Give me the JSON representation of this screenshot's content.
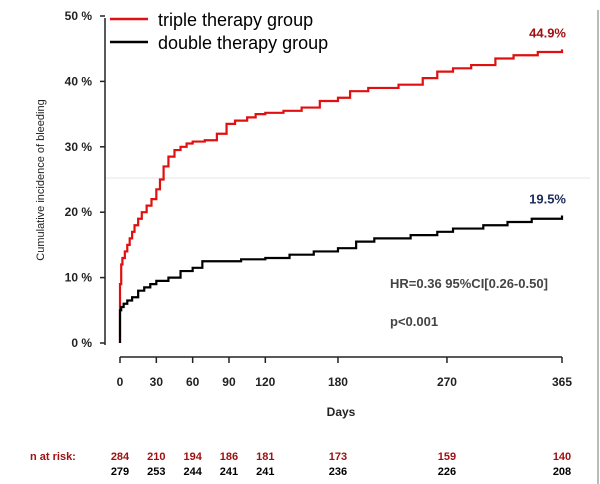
{
  "chart_data": {
    "type": "line",
    "ylabel": "Cumulative incidence of bleeding",
    "xlabel": "Days",
    "xlim": [
      0,
      365
    ],
    "ylim": [
      0,
      50
    ],
    "x_ticks": [
      0,
      30,
      60,
      90,
      120,
      180,
      270,
      365
    ],
    "y_ticks": [
      0,
      10,
      20,
      30,
      40,
      50
    ],
    "y_tick_labels": [
      "0 %",
      "10 %",
      "20 %",
      "30 %",
      "40 %",
      "50 %"
    ],
    "grid": false,
    "legend_position": "top-left",
    "series": [
      {
        "name": "triple therapy group",
        "color": "#e01010",
        "end_label": "44.9%",
        "points": [
          [
            0,
            0
          ],
          [
            0,
            9
          ],
          [
            1,
            12
          ],
          [
            2,
            13
          ],
          [
            4,
            14
          ],
          [
            6,
            15
          ],
          [
            8,
            16
          ],
          [
            10,
            17
          ],
          [
            12,
            18
          ],
          [
            15,
            19
          ],
          [
            18,
            20
          ],
          [
            22,
            21
          ],
          [
            26,
            22
          ],
          [
            30,
            23.5
          ],
          [
            33,
            25
          ],
          [
            36,
            27
          ],
          [
            40,
            28.5
          ],
          [
            45,
            29.5
          ],
          [
            50,
            30
          ],
          [
            55,
            30.5
          ],
          [
            60,
            30.8
          ],
          [
            70,
            31
          ],
          [
            80,
            32
          ],
          [
            88,
            33.5
          ],
          [
            95,
            34
          ],
          [
            105,
            34.5
          ],
          [
            112,
            35
          ],
          [
            120,
            35.2
          ],
          [
            135,
            35.5
          ],
          [
            150,
            36
          ],
          [
            165,
            37
          ],
          [
            180,
            37.5
          ],
          [
            190,
            38.5
          ],
          [
            205,
            39
          ],
          [
            230,
            39.5
          ],
          [
            250,
            40.5
          ],
          [
            262,
            41.5
          ],
          [
            275,
            42
          ],
          [
            290,
            42.5
          ],
          [
            310,
            43.5
          ],
          [
            325,
            44
          ],
          [
            345,
            44.5
          ],
          [
            365,
            44.9
          ]
        ]
      },
      {
        "name": "double therapy group",
        "color": "#000000",
        "end_label": "19.5%",
        "points": [
          [
            0,
            0
          ],
          [
            0,
            5
          ],
          [
            1,
            5.5
          ],
          [
            3,
            6
          ],
          [
            6,
            6.5
          ],
          [
            10,
            7
          ],
          [
            15,
            8
          ],
          [
            20,
            8.5
          ],
          [
            25,
            9
          ],
          [
            30,
            9.5
          ],
          [
            40,
            10
          ],
          [
            50,
            11
          ],
          [
            60,
            11.5
          ],
          [
            68,
            12.5
          ],
          [
            80,
            12.5
          ],
          [
            100,
            12.8
          ],
          [
            120,
            13
          ],
          [
            140,
            13.5
          ],
          [
            160,
            14
          ],
          [
            180,
            14.5
          ],
          [
            195,
            15.5
          ],
          [
            210,
            16
          ],
          [
            240,
            16.5
          ],
          [
            262,
            17
          ],
          [
            275,
            17.5
          ],
          [
            300,
            18
          ],
          [
            320,
            18.5
          ],
          [
            340,
            19
          ],
          [
            365,
            19.5
          ]
        ]
      }
    ],
    "annotations": {
      "hr": "HR=0.36  95%CI[0.26-0.50]",
      "p": "p<0.001"
    },
    "risk_table": {
      "label": "n at risk:",
      "days": [
        0,
        30,
        60,
        90,
        120,
        180,
        270,
        365
      ],
      "triple": [
        284,
        210,
        194,
        186,
        181,
        173,
        159,
        140
      ],
      "double": [
        279,
        253,
        244,
        241,
        241,
        236,
        226,
        208
      ],
      "triple_color": "#a01010",
      "double_color": "#000000"
    }
  }
}
